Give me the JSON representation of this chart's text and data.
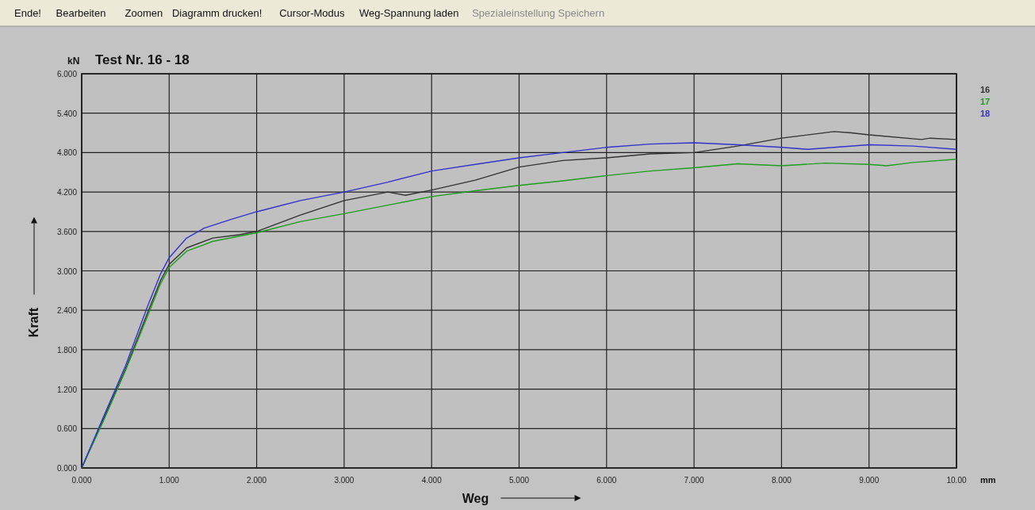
{
  "chart_data": {
    "type": "line",
    "title": "Test Nr.  16 - 18",
    "xlabel": "Weg",
    "ylabel": "Kraft",
    "annotations": [
      "kN",
      "mm",
      "Ende!",
      "Bearbeiten",
      "Zoomen",
      "Diagramm drucken!",
      "Cursor-Modus",
      "Weg-Spannung laden",
      "Spezialeinstellung Speichern"
    ],
    "xlim": [
      0,
      10
    ],
    "ylim": [
      0,
      6
    ],
    "xticks": [
      {
        "value": 0,
        "label": "0.000"
      },
      {
        "value": 1,
        "label": "1.000"
      },
      {
        "value": 2,
        "label": "2.000"
      },
      {
        "value": 3,
        "label": "3.000"
      },
      {
        "value": 4,
        "label": "4.000"
      },
      {
        "value": 5,
        "label": "5.000"
      },
      {
        "value": 6,
        "label": "6.000"
      },
      {
        "value": 7,
        "label": "7.000"
      },
      {
        "value": 8,
        "label": "8.000"
      },
      {
        "value": 9,
        "label": "9.000"
      },
      {
        "value": 10,
        "label": "10.00"
      }
    ],
    "yticks": [
      {
        "value": 0,
        "label": "0.000"
      },
      {
        "value": 0.6,
        "label": "0.600"
      },
      {
        "value": 1.2,
        "label": "1.200"
      },
      {
        "value": 1.8,
        "label": "1.800"
      },
      {
        "value": 2.4,
        "label": "2.400"
      },
      {
        "value": 3,
        "label": "3.000"
      },
      {
        "value": 3.6,
        "label": "3.600"
      },
      {
        "value": 4.2,
        "label": "4.200"
      },
      {
        "value": 4.8,
        "label": "4.800"
      },
      {
        "value": 5.4,
        "label": "5.400"
      },
      {
        "value": 6,
        "label": "6.000"
      }
    ],
    "grid": true,
    "legend": "top right",
    "line_style": "solid",
    "series": [
      {
        "name": "16",
        "color": "#333333",
        "x": [
          0,
          0.25,
          0.5,
          0.75,
          0.9,
          1.0,
          1.2,
          1.5,
          1.8,
          2.0,
          2.5,
          3.0,
          3.5,
          3.7,
          4.0,
          4.5,
          5.0,
          5.5,
          6.0,
          6.5,
          7.0,
          7.5,
          8.0,
          8.6,
          8.8,
          9.0,
          9.6,
          9.7,
          10
        ],
        "values": [
          0,
          0.75,
          1.5,
          2.35,
          2.85,
          3.1,
          3.35,
          3.5,
          3.55,
          3.6,
          3.85,
          4.07,
          4.2,
          4.15,
          4.23,
          4.38,
          4.58,
          4.68,
          4.72,
          4.78,
          4.8,
          4.9,
          5.02,
          5.12,
          5.1,
          5.07,
          5.0,
          5.02,
          5.0
        ]
      },
      {
        "name": "17",
        "color": "#1e9e1e",
        "x": [
          0,
          0.25,
          0.5,
          0.75,
          0.9,
          1.0,
          1.2,
          1.5,
          2.0,
          2.5,
          3.0,
          3.5,
          4.0,
          4.5,
          5.0,
          5.5,
          6.0,
          6.5,
          7.0,
          7.5,
          8.0,
          8.5,
          9.0,
          9.2,
          9.5,
          10
        ],
        "values": [
          0,
          0.72,
          1.48,
          2.3,
          2.8,
          3.05,
          3.3,
          3.45,
          3.58,
          3.75,
          3.87,
          4.0,
          4.13,
          4.22,
          4.3,
          4.37,
          4.45,
          4.52,
          4.57,
          4.63,
          4.6,
          4.64,
          4.62,
          4.6,
          4.65,
          4.7
        ]
      },
      {
        "name": "18",
        "color": "#3333cc",
        "x": [
          0,
          0.25,
          0.5,
          0.75,
          0.9,
          1.0,
          1.2,
          1.4,
          1.7,
          2.0,
          2.5,
          3.0,
          3.5,
          4.0,
          4.5,
          5.0,
          5.5,
          6.0,
          6.5,
          7.0,
          7.5,
          8.0,
          8.3,
          9.0,
          9.5,
          10
        ],
        "values": [
          0,
          0.78,
          1.55,
          2.45,
          2.95,
          3.2,
          3.5,
          3.65,
          3.78,
          3.9,
          4.07,
          4.2,
          4.35,
          4.52,
          4.62,
          4.72,
          4.8,
          4.88,
          4.93,
          4.95,
          4.92,
          4.88,
          4.85,
          4.92,
          4.9,
          4.85
        ]
      }
    ]
  }
}
